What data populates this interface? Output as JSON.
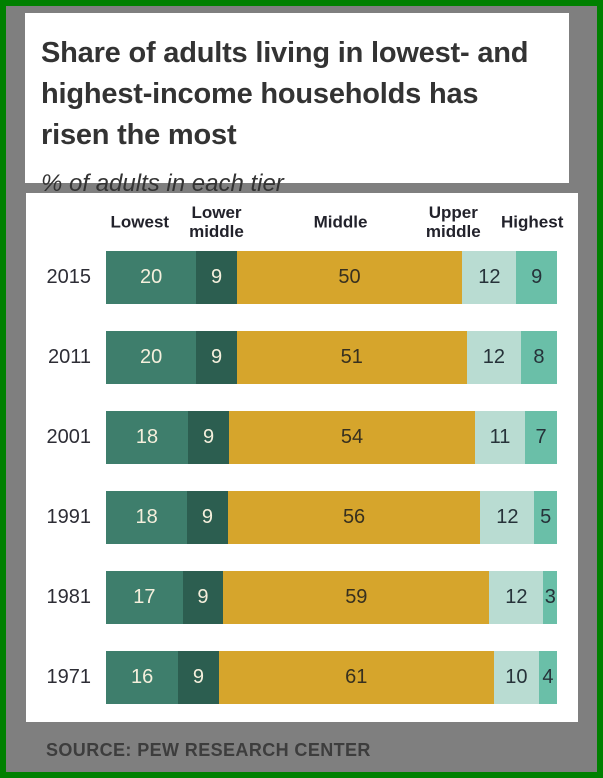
{
  "header": {
    "title_lines": [
      "Share of adults living in lowest- and",
      "highest-income households has",
      "risen the most"
    ],
    "subtitle": "% of adults in each tier"
  },
  "footer": {
    "source": "SOURCE: PEW RESEARCH CENTER"
  },
  "chart_data": {
    "type": "bar",
    "orientation": "horizontal",
    "stacked": true,
    "title": "Share of adults living in lowest- and highest-income households has risen the most",
    "subtitle": "% of adults in each tier",
    "unit": "% of adults in each tier",
    "xlim": [
      0,
      100
    ],
    "grid": false,
    "legend_position": "top",
    "series_labels": [
      "Lowest",
      "Lower middle",
      "Middle",
      "Upper middle",
      "Highest"
    ],
    "series_colors": [
      "#3e7e6c",
      "#2c5e50",
      "#d6a52c",
      "#b9dcd2",
      "#6abfa8"
    ],
    "value_label_colors": [
      "#f5efdc",
      "#f5efdc",
      "#37301f",
      "#263239",
      "#263239"
    ],
    "header_positions_pct": [
      7.5,
      24.5,
      52,
      77,
      94.5
    ],
    "categories": [
      "2015",
      "2011",
      "2001",
      "1991",
      "1981",
      "1971"
    ],
    "rows": [
      {
        "year": "2015",
        "values": [
          20,
          9,
          50,
          12,
          9
        ]
      },
      {
        "year": "2011",
        "values": [
          20,
          9,
          51,
          12,
          8
        ]
      },
      {
        "year": "2001",
        "values": [
          18,
          9,
          54,
          11,
          7
        ]
      },
      {
        "year": "1991",
        "values": [
          18,
          9,
          56,
          12,
          5
        ]
      },
      {
        "year": "1981",
        "values": [
          17,
          9,
          59,
          12,
          3
        ]
      },
      {
        "year": "1971",
        "values": [
          16,
          9,
          61,
          10,
          4
        ]
      }
    ]
  },
  "colors": {
    "frame_border": "#008000",
    "background": "#7f7f7f",
    "card_background": "#ffffff",
    "title_text": "#333333",
    "source_text": "#3d3d3d"
  }
}
